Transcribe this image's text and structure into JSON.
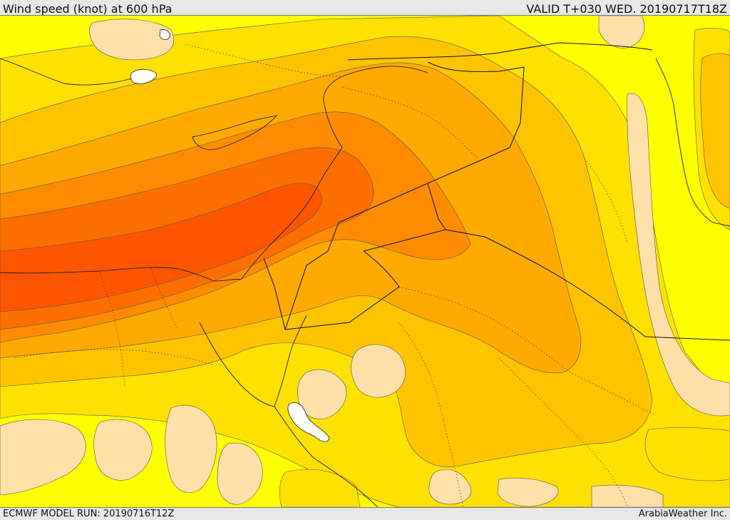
{
  "header": {
    "title": "Wind speed (knot) at 600 hPa",
    "valid": "VALID T+030 WED. 20190717T18Z"
  },
  "footer": {
    "model_run": "ECMWF MODEL RUN: 20190716T12Z",
    "credit": "ArabiaWeather Inc."
  },
  "palette": {
    "band_10_20": "#ffff00",
    "band_20_30": "#ffe100",
    "band_30_40": "#ffc400",
    "band_40_50": "#ffaa00",
    "band_50_60": "#ff8c00",
    "band_60_70": "#ff6f00",
    "band_70_80": "#ff5500",
    "calm_below_10": "#ffe0a8",
    "inland_water": "#ffffff",
    "coastline": "#222222",
    "contour": "#555555"
  }
}
